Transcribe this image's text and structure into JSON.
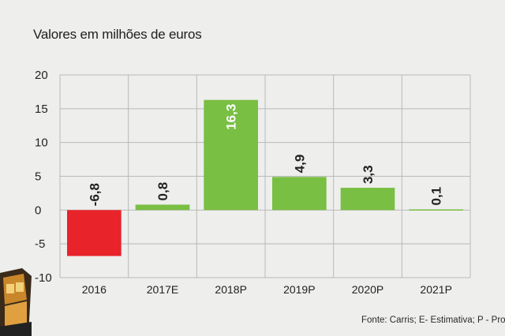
{
  "chart_data": {
    "type": "bar",
    "title": "Valores em milhões de euros",
    "categories": [
      "2016",
      "2017E",
      "2018P",
      "2019P",
      "2020P",
      "2021P"
    ],
    "values": [
      -6.8,
      0.8,
      16.3,
      4.9,
      3.3,
      0.1
    ],
    "value_labels": [
      "-6,8",
      "0,8",
      "16,3",
      "4,9",
      "3,3",
      "0,1"
    ],
    "ylim": [
      -10,
      20
    ],
    "yticks": [
      20,
      15,
      10,
      5,
      0,
      -5,
      -10
    ],
    "ytick_labels": [
      "20",
      "15",
      "10",
      "5",
      "0",
      "-5",
      "-10"
    ],
    "xlabel": "",
    "ylabel": "",
    "grid": true,
    "colors": {
      "positive": "#79bf43",
      "negative": "#e8232a",
      "grid": "#b9b9b9",
      "label_dark": "#222222",
      "label_light": "#ffffff"
    }
  },
  "source": "Fonte: Carris; E- Estimativa; P - Pro"
}
